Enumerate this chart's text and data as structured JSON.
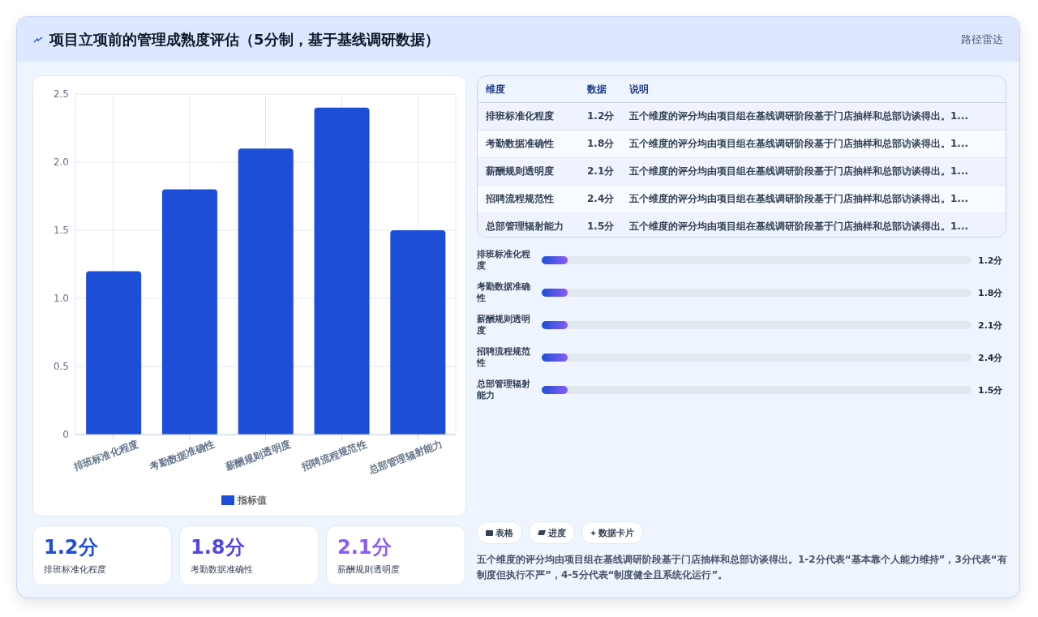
{
  "chart_data": {
    "type": "bar",
    "title": "项目立项前的管理成熟度评估（5分制，基于基线调研数据）",
    "categories": [
      "排班标准化程度",
      "考勤数据准确性",
      "薪酬规则透明度",
      "招聘流程规范性",
      "总部管理辐射能力"
    ],
    "series": [
      {
        "name": "指标值",
        "color": "#1d4ed8",
        "values": [
          1.2,
          1.8,
          2.1,
          2.4,
          1.5
        ]
      }
    ],
    "value_labels": [
      "1.2分",
      "1.8分",
      "2.1分",
      "2.4分",
      "1.5分"
    ],
    "ylim": [
      0,
      2.5
    ],
    "yticks": [
      {
        "value": 0,
        "label": "0"
      },
      {
        "value": 0.5,
        "label": "0.5"
      },
      {
        "value": 1,
        "label": "1.0"
      },
      {
        "value": 1.5,
        "label": "1.5"
      },
      {
        "value": 2,
        "label": "2.0"
      },
      {
        "value": 2.5,
        "label": "2.5"
      }
    ],
    "grid": true,
    "legend": "bottom",
    "annotations": [
      "路径雷达",
      "维度",
      "数据",
      "说明",
      "表格",
      "进度",
      "数据卡片",
      "五个维度的评分均由项目组在基线调研阶段基于门店抽样和总部访谈得出。1-2分代表“基本靠个人能力维持”，3分代表“有制度但执行不严”，4-5分代表“制度健全且系统化运行”。",
      "五个维度的评分均由项目组在基线调研阶段基于门店抽样和总部访谈得出。1..."
    ]
  }
}
